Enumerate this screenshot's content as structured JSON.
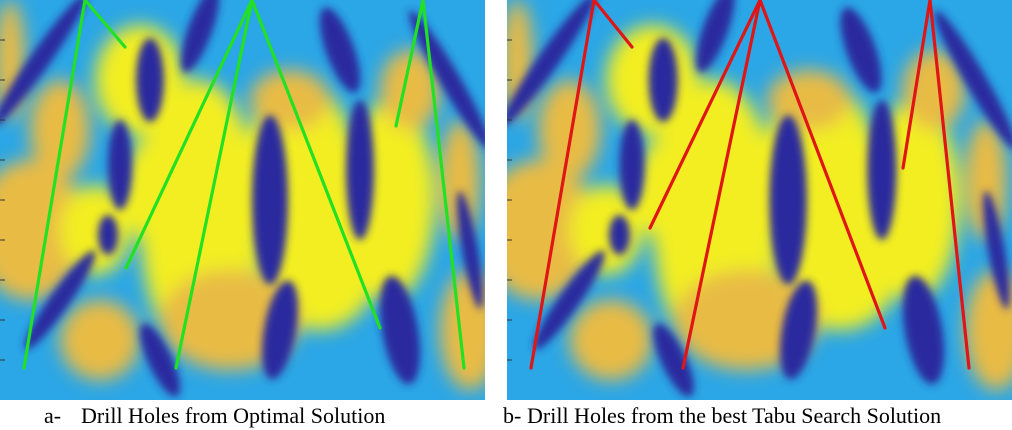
{
  "figure": {
    "panels": [
      {
        "id": "a",
        "caption_prefix": "a-",
        "caption_text": "Drill Holes from Optimal Solution",
        "line_color": "#22e022"
      },
      {
        "id": "b",
        "caption_prefix": "b-",
        "caption_text": "Drill Holes from the best Tabu Search Solution",
        "line_color": "#e01515"
      }
    ],
    "colormap": {
      "low": "#2b2a9e",
      "mid": "#2ba6e6",
      "high": "#f2ee24",
      "warm": "#e8bb45"
    }
  }
}
